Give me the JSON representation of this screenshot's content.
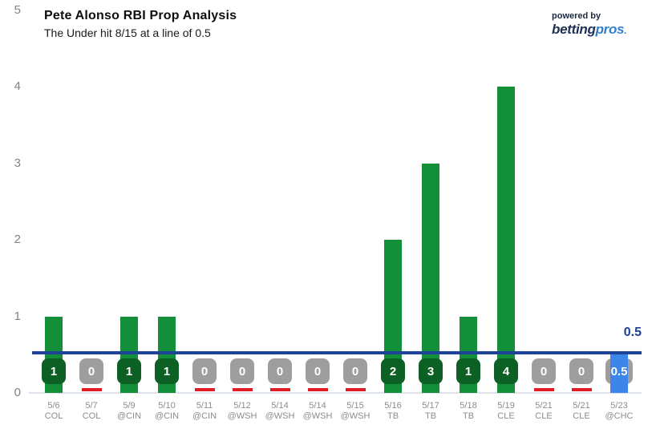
{
  "header": {
    "title": "Pete Alonso RBI Prop Analysis",
    "subtitle": "The Under hit 8/15 at a line of 0.5",
    "powered_by": "powered by",
    "brand": {
      "betting": "betting",
      "pros": "pros",
      "dot": "."
    }
  },
  "chart_data": {
    "type": "bar",
    "title": "Pete Alonso RBI Prop Analysis",
    "subtitle": "The Under hit 8/15 at a line of 0.5",
    "xlabel": "",
    "ylabel": "",
    "ylim": [
      0,
      5
    ],
    "yticks": [
      0,
      1,
      2,
      3,
      4,
      5
    ],
    "grid": false,
    "legend": false,
    "games": [
      {
        "date": "5/6",
        "opponent": "COL",
        "value": 1,
        "projection": false
      },
      {
        "date": "5/7",
        "opponent": "COL",
        "value": 0,
        "projection": false
      },
      {
        "date": "5/9",
        "opponent": "@CIN",
        "value": 1,
        "projection": false
      },
      {
        "date": "5/10",
        "opponent": "@CIN",
        "value": 1,
        "projection": false
      },
      {
        "date": "5/11",
        "opponent": "@CIN",
        "value": 0,
        "projection": false
      },
      {
        "date": "5/12",
        "opponent": "@WSH",
        "value": 0,
        "projection": false
      },
      {
        "date": "5/14",
        "opponent": "@WSH",
        "value": 0,
        "projection": false
      },
      {
        "date": "5/14",
        "opponent": "@WSH",
        "value": 0,
        "projection": false
      },
      {
        "date": "5/15",
        "opponent": "@WSH",
        "value": 0,
        "projection": false
      },
      {
        "date": "5/16",
        "opponent": "TB",
        "value": 2,
        "projection": false
      },
      {
        "date": "5/17",
        "opponent": "TB",
        "value": 3,
        "projection": false
      },
      {
        "date": "5/18",
        "opponent": "TB",
        "value": 1,
        "projection": false
      },
      {
        "date": "5/19",
        "opponent": "CLE",
        "value": 4,
        "projection": false
      },
      {
        "date": "5/21",
        "opponent": "CLE",
        "value": 0,
        "projection": false
      },
      {
        "date": "5/21",
        "opponent": "CLE",
        "value": 0,
        "projection": false
      },
      {
        "date": "5/23",
        "opponent": "@CHC",
        "value": 0.5,
        "projection": true
      }
    ],
    "prop_line": {
      "value": 0.5,
      "label": "0.5"
    },
    "colors": {
      "hit_bar": "#148f39",
      "hit_badge": "#0d6024",
      "zero_badge": "#9e9e9e",
      "zero_mark": "#e11e25",
      "projection_bar": "#3d85e8",
      "line": "#1d4296",
      "line_label": "#1d3f94",
      "baseline": "#dde3ec"
    }
  }
}
